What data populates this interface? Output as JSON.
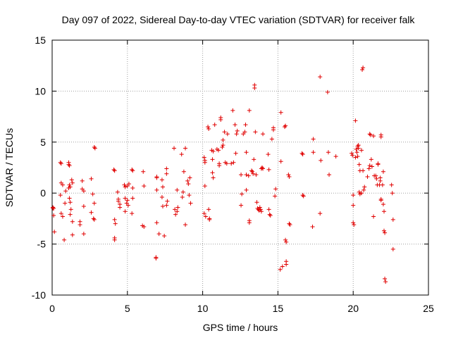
{
  "chart_data": {
    "type": "scatter",
    "title": "Day 097 of 2022, Sidereal Day-to-day VTEC variation (SDTVAR) for receiver falk",
    "xlabel": "GPS time / hours",
    "ylabel": "SDTVAR / TECUs",
    "xlim": [
      0,
      25
    ],
    "ylim": [
      -10,
      15
    ],
    "xticks": [
      0,
      5,
      10,
      15,
      20,
      25
    ],
    "yticks": [
      -10,
      -5,
      0,
      5,
      10,
      15
    ],
    "xtick_labels": [
      "0",
      "5",
      "10",
      "15",
      "20",
      "25"
    ],
    "ytick_labels": [
      "-10",
      "-5",
      "0",
      "5",
      "10",
      "15"
    ],
    "grid": true,
    "marker": "+",
    "color": "#e00000",
    "series": [
      {
        "name": "SDTVAR",
        "points": [
          [
            0.05,
            -1.4
          ],
          [
            0.1,
            -1.5
          ],
          [
            0.1,
            -2.2
          ],
          [
            0.15,
            -3.8
          ],
          [
            0.05,
            -1.5
          ],
          [
            0.55,
            3.0
          ],
          [
            0.6,
            2.9
          ],
          [
            0.6,
            1.0
          ],
          [
            0.55,
            -0.2
          ],
          [
            0.6,
            -2.0
          ],
          [
            0.7,
            -2.3
          ],
          [
            0.7,
            0.8
          ],
          [
            0.8,
            -4.6
          ],
          [
            0.85,
            -1.0
          ],
          [
            0.9,
            0.2
          ],
          [
            1.1,
            3.0
          ],
          [
            1.1,
            2.8
          ],
          [
            1.15,
            2.7
          ],
          [
            1.1,
            0.5
          ],
          [
            1.15,
            0.8
          ],
          [
            1.2,
            0.6
          ],
          [
            1.15,
            -0.5
          ],
          [
            1.2,
            -0.9
          ],
          [
            1.25,
            -1.6
          ],
          [
            1.2,
            -2.1
          ],
          [
            1.3,
            1.3
          ],
          [
            1.35,
            1.0
          ],
          [
            1.35,
            -2.8
          ],
          [
            1.35,
            -4.1
          ],
          [
            2.0,
            1.2
          ],
          [
            2.0,
            0.4
          ],
          [
            2.1,
            0.2
          ],
          [
            2.1,
            -1.3
          ],
          [
            1.85,
            -2.8
          ],
          [
            1.85,
            -3.1
          ],
          [
            2.1,
            -4.0
          ],
          [
            2.6,
            1.4
          ],
          [
            2.7,
            -0.1
          ],
          [
            2.6,
            -1.9
          ],
          [
            2.75,
            -2.5
          ],
          [
            2.8,
            -2.6
          ],
          [
            2.8,
            -1.0
          ],
          [
            2.8,
            4.5
          ],
          [
            2.85,
            4.4
          ],
          [
            4.1,
            2.3
          ],
          [
            4.15,
            2.2
          ],
          [
            4.15,
            -2.6
          ],
          [
            4.15,
            -4.4
          ],
          [
            4.15,
            -4.6
          ],
          [
            4.2,
            -3.0
          ],
          [
            4.35,
            0.1
          ],
          [
            4.4,
            -0.6
          ],
          [
            4.4,
            -0.8
          ],
          [
            4.5,
            -1.1
          ],
          [
            4.5,
            -1.4
          ],
          [
            4.8,
            0.8
          ],
          [
            4.85,
            0.6
          ],
          [
            4.85,
            -0.5
          ],
          [
            4.85,
            -1.8
          ],
          [
            4.95,
            -1.0
          ],
          [
            5.0,
            0.7
          ],
          [
            5.0,
            -0.7
          ],
          [
            5.05,
            -1.2
          ],
          [
            5.1,
            0.9
          ],
          [
            5.3,
            2.3
          ],
          [
            5.35,
            2.2
          ],
          [
            5.35,
            0.5
          ],
          [
            5.35,
            -0.5
          ],
          [
            5.3,
            -2.0
          ],
          [
            6.05,
            2.1
          ],
          [
            6.0,
            -3.2
          ],
          [
            6.1,
            -3.3
          ],
          [
            6.1,
            0.7
          ],
          [
            6.9,
            -6.3
          ],
          [
            6.9,
            -6.4
          ],
          [
            6.95,
            1.6
          ],
          [
            6.95,
            1.5
          ],
          [
            6.95,
            0.3
          ],
          [
            6.95,
            -2.9
          ],
          [
            7.1,
            -4.0
          ],
          [
            7.3,
            1.3
          ],
          [
            7.35,
            0.6
          ],
          [
            7.3,
            -0.4
          ],
          [
            7.35,
            -1.3
          ],
          [
            7.45,
            -4.2
          ],
          [
            7.6,
            2.4
          ],
          [
            7.6,
            1.9
          ],
          [
            7.65,
            -0.8
          ],
          [
            7.6,
            -1.2
          ],
          [
            8.1,
            4.4
          ],
          [
            8.15,
            -1.6
          ],
          [
            8.2,
            -2.1
          ],
          [
            8.3,
            -1.8
          ],
          [
            8.3,
            0.3
          ],
          [
            8.35,
            -1.4
          ],
          [
            8.6,
            3.8
          ],
          [
            8.65,
            -0.4
          ],
          [
            8.7,
            0.1
          ],
          [
            8.75,
            2.1
          ],
          [
            8.85,
            4.4
          ],
          [
            8.85,
            -3.1
          ],
          [
            9.0,
            1.2
          ],
          [
            9.05,
            0.9
          ],
          [
            9.1,
            -0.2
          ],
          [
            9.15,
            1.5
          ],
          [
            9.2,
            -1.0
          ],
          [
            10.1,
            3.5
          ],
          [
            10.15,
            3.2
          ],
          [
            10.15,
            3.0
          ],
          [
            10.15,
            0.7
          ],
          [
            10.1,
            -2.0
          ],
          [
            10.2,
            -2.3
          ],
          [
            10.35,
            6.5
          ],
          [
            10.4,
            6.3
          ],
          [
            10.4,
            -1.6
          ],
          [
            10.45,
            -2.5
          ],
          [
            10.45,
            -2.6
          ],
          [
            10.6,
            4.2
          ],
          [
            10.7,
            4.1
          ],
          [
            10.65,
            3.3
          ],
          [
            10.65,
            2.0
          ],
          [
            10.7,
            1.5
          ],
          [
            10.8,
            6.7
          ],
          [
            10.95,
            4.3
          ],
          [
            11.05,
            4.2
          ],
          [
            11.1,
            2.9
          ],
          [
            11.1,
            2.7
          ],
          [
            11.2,
            7.2
          ],
          [
            11.2,
            7.4
          ],
          [
            11.3,
            4.5
          ],
          [
            11.35,
            5.2
          ],
          [
            11.35,
            4.7
          ],
          [
            11.45,
            6.0
          ],
          [
            11.5,
            3.0
          ],
          [
            11.6,
            2.9
          ],
          [
            11.65,
            5.8
          ],
          [
            11.9,
            2.9
          ],
          [
            12.0,
            8.1
          ],
          [
            12.05,
            3.0
          ],
          [
            12.15,
            6.7
          ],
          [
            12.2,
            3.9
          ],
          [
            12.25,
            5.8
          ],
          [
            12.3,
            6.1
          ],
          [
            12.55,
            1.8
          ],
          [
            12.55,
            -1.2
          ],
          [
            12.6,
            -0.1
          ],
          [
            12.7,
            5.8
          ],
          [
            12.8,
            6.0
          ],
          [
            12.85,
            6.7
          ],
          [
            12.9,
            0.3
          ],
          [
            12.9,
            1.8
          ],
          [
            12.9,
            4.0
          ],
          [
            13.05,
            1.7
          ],
          [
            13.1,
            8.1
          ],
          [
            13.1,
            -2.7
          ],
          [
            13.1,
            -2.9
          ],
          [
            13.25,
            2.2
          ],
          [
            13.3,
            2.1
          ],
          [
            13.35,
            1.9
          ],
          [
            13.4,
            3.3
          ],
          [
            13.45,
            10.3
          ],
          [
            13.45,
            10.6
          ],
          [
            13.5,
            6.0
          ],
          [
            13.55,
            1.8
          ],
          [
            13.6,
            -0.9
          ],
          [
            13.65,
            -1.5
          ],
          [
            13.7,
            -1.6
          ],
          [
            13.75,
            -1.7
          ],
          [
            13.8,
            -1.4
          ],
          [
            13.85,
            -1.6
          ],
          [
            13.9,
            -1.8
          ],
          [
            13.9,
            2.4
          ],
          [
            13.95,
            2.5
          ],
          [
            14.0,
            2.4
          ],
          [
            14.0,
            5.8
          ],
          [
            14.35,
            3.8
          ],
          [
            14.4,
            2.3
          ],
          [
            14.4,
            -1.6
          ],
          [
            14.45,
            -2.1
          ],
          [
            14.5,
            -2.2
          ],
          [
            14.6,
            5.3
          ],
          [
            14.7,
            6.2
          ],
          [
            14.7,
            6.4
          ],
          [
            14.8,
            -0.3
          ],
          [
            14.85,
            0.4
          ],
          [
            15.2,
            7.9
          ],
          [
            15.2,
            3.1
          ],
          [
            15.15,
            -7.5
          ],
          [
            15.3,
            -7.2
          ],
          [
            15.45,
            6.5
          ],
          [
            15.5,
            6.6
          ],
          [
            15.5,
            -4.6
          ],
          [
            15.55,
            -4.8
          ],
          [
            15.55,
            -6.7
          ],
          [
            15.55,
            -7.0
          ],
          [
            15.7,
            1.8
          ],
          [
            15.75,
            1.6
          ],
          [
            15.75,
            -3.0
          ],
          [
            15.8,
            -3.1
          ],
          [
            16.6,
            3.9
          ],
          [
            16.65,
            3.8
          ],
          [
            16.65,
            -0.2
          ],
          [
            16.7,
            -0.3
          ],
          [
            17.35,
            5.3
          ],
          [
            17.35,
            4.0
          ],
          [
            17.3,
            -3.3
          ],
          [
            17.8,
            11.4
          ],
          [
            17.8,
            -2.0
          ],
          [
            17.85,
            3.2
          ],
          [
            18.3,
            9.9
          ],
          [
            18.35,
            4.0
          ],
          [
            18.4,
            1.8
          ],
          [
            18.85,
            3.6
          ],
          [
            19.9,
            3.9
          ],
          [
            19.95,
            3.7
          ],
          [
            20.0,
            -0.2
          ],
          [
            20.0,
            -1.2
          ],
          [
            20.0,
            -2.9
          ],
          [
            20.05,
            -3.1
          ],
          [
            20.15,
            7.1
          ],
          [
            20.15,
            3.5
          ],
          [
            20.2,
            4.3
          ],
          [
            20.25,
            4.0
          ],
          [
            20.3,
            3.6
          ],
          [
            20.3,
            4.6
          ],
          [
            20.35,
            4.4
          ],
          [
            20.35,
            4.7
          ],
          [
            20.4,
            2.8
          ],
          [
            20.45,
            2.2
          ],
          [
            20.4,
            0.1
          ],
          [
            20.45,
            -0.1
          ],
          [
            20.55,
            -0.0
          ],
          [
            20.55,
            4.2
          ],
          [
            20.6,
            12.1
          ],
          [
            20.65,
            12.3
          ],
          [
            20.65,
            2.2
          ],
          [
            20.7,
            0.3
          ],
          [
            20.75,
            0.6
          ],
          [
            20.95,
            1.6
          ],
          [
            21.05,
            2.4
          ],
          [
            21.1,
            5.8
          ],
          [
            21.15,
            5.7
          ],
          [
            21.1,
            2.7
          ],
          [
            21.2,
            3.3
          ],
          [
            21.25,
            2.6
          ],
          [
            21.35,
            5.6
          ],
          [
            21.35,
            -2.3
          ],
          [
            21.4,
            1.7
          ],
          [
            21.5,
            1.7
          ],
          [
            21.55,
            1.4
          ],
          [
            21.6,
            0.8
          ],
          [
            21.65,
            2.9
          ],
          [
            21.65,
            2.8
          ],
          [
            21.75,
            0.8
          ],
          [
            21.8,
            1.5
          ],
          [
            21.8,
            1.2
          ],
          [
            21.85,
            5.5
          ],
          [
            21.85,
            5.7
          ],
          [
            21.85,
            -0.6
          ],
          [
            21.85,
            -0.7
          ],
          [
            21.95,
            0.8
          ],
          [
            22.0,
            2.1
          ],
          [
            22.0,
            -1.1
          ],
          [
            22.05,
            -1.8
          ],
          [
            22.05,
            -3.7
          ],
          [
            22.1,
            -3.9
          ],
          [
            22.1,
            -8.4
          ],
          [
            22.15,
            -8.7
          ],
          [
            22.6,
            -0.0
          ],
          [
            22.65,
            -2.6
          ],
          [
            22.65,
            -5.5
          ],
          [
            22.55,
            0.8
          ]
        ]
      }
    ]
  }
}
